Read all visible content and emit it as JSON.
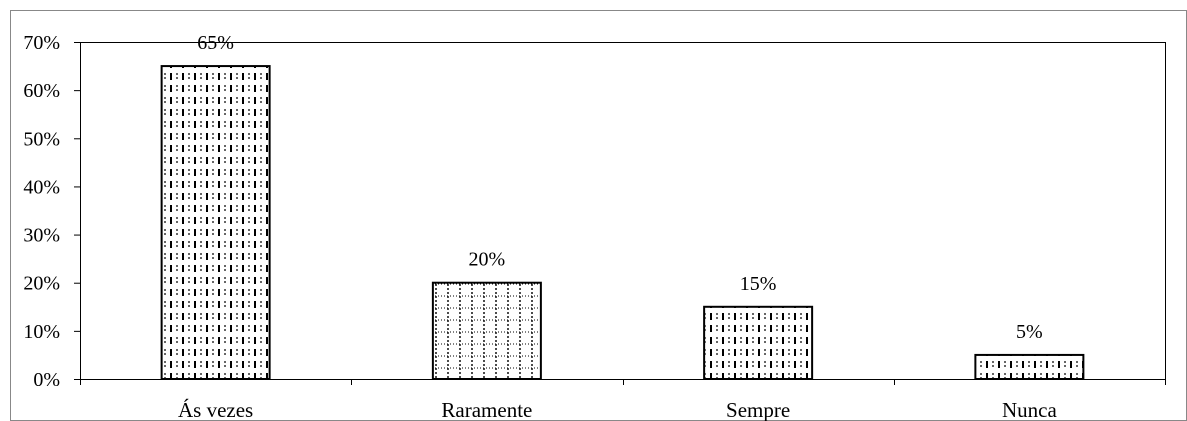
{
  "chart_data": {
    "type": "bar",
    "title": "",
    "xlabel": "",
    "ylabel": "",
    "categories": [
      "Ás vezes",
      "Raramente",
      "Sempre",
      "Nunca"
    ],
    "values": [
      65,
      20,
      15,
      5
    ],
    "data_labels": [
      "65%",
      "20%",
      "15%",
      "5%"
    ],
    "y_ticks": [
      "0%",
      "10%",
      "20%",
      "30%",
      "40%",
      "50%",
      "60%",
      "70%"
    ],
    "ylim": [
      0,
      70
    ],
    "grid": false,
    "legend": "none",
    "bar_fill": "#ffffff",
    "bar_stroke": "#000000",
    "bar_patterns": [
      "dashed-vertical",
      "dotted-grid",
      "dashed-vertical",
      "dashed-vertical"
    ]
  }
}
